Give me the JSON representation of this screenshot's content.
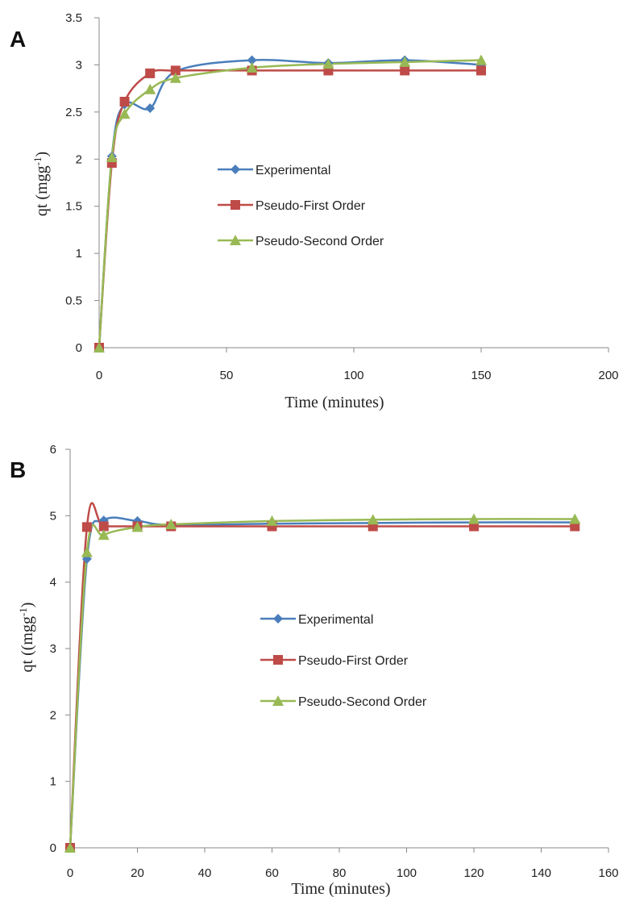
{
  "chart_data": [
    {
      "type": "line",
      "panel_label": "A",
      "xlabel": "Time (minutes)",
      "ylabel": "qt (mgg",
      "ylabel_sup": "-1",
      "ylabel_end": ")",
      "xlim": [
        0,
        200
      ],
      "ylim": [
        0,
        3.5
      ],
      "xticks": [
        "0",
        "50",
        "100",
        "150",
        "200"
      ],
      "yticks": [
        "0",
        "0.5",
        "1",
        "1.5",
        "2",
        "2.5",
        "3",
        "3.5"
      ],
      "grid": false,
      "legend_position": "center",
      "series": [
        {
          "name": "Experimental",
          "color": "#4a7ebb",
          "marker": "diamond",
          "x": [
            0,
            5,
            10,
            20,
            30,
            60,
            90,
            120,
            150
          ],
          "y": [
            0,
            2.03,
            2.58,
            2.54,
            2.93,
            3.05,
            3.02,
            3.05,
            3.0
          ]
        },
        {
          "name": "Pseudo-First Order",
          "color": "#be4b48",
          "marker": "square",
          "x": [
            0,
            5,
            10,
            20,
            30,
            60,
            90,
            120,
            150
          ],
          "y": [
            0,
            1.96,
            2.61,
            2.91,
            2.94,
            2.94,
            2.94,
            2.94,
            2.94
          ]
        },
        {
          "name": "Pseudo-Second Order",
          "color": "#98b954",
          "marker": "triangle",
          "x": [
            0,
            5,
            10,
            20,
            30,
            60,
            90,
            120,
            150
          ],
          "y": [
            0,
            2.02,
            2.48,
            2.74,
            2.86,
            2.97,
            3.01,
            3.03,
            3.05
          ]
        }
      ]
    },
    {
      "type": "line",
      "panel_label": "B",
      "xlabel": "Time (minutes)",
      "ylabel": "qt ((mgg",
      "ylabel_sup": "-1",
      "ylabel_end": ")",
      "xlim": [
        0,
        160
      ],
      "ylim": [
        0,
        6
      ],
      "xticks": [
        "0",
        "20",
        "40",
        "60",
        "80",
        "100",
        "120",
        "140",
        "160"
      ],
      "yticks": [
        "0",
        "1",
        "2",
        "3",
        "4",
        "5",
        "6"
      ],
      "grid": false,
      "legend_position": "center",
      "series": [
        {
          "name": "Experimental",
          "color": "#4a7ebb",
          "marker": "diamond",
          "x": [
            0,
            5,
            10,
            20,
            30,
            60,
            90,
            120,
            150
          ],
          "y": [
            0,
            4.35,
            4.93,
            4.92,
            4.86,
            4.88,
            4.89,
            4.9,
            4.9
          ]
        },
        {
          "name": "Pseudo-First Order",
          "color": "#be4b48",
          "marker": "square",
          "x": [
            0,
            5,
            10,
            20,
            30,
            60,
            90,
            120,
            150
          ],
          "y": [
            0,
            4.83,
            4.84,
            4.84,
            4.84,
            4.84,
            4.84,
            4.84,
            4.84
          ]
        },
        {
          "name": "Pseudo-Second Order",
          "color": "#98b954",
          "marker": "triangle",
          "x": [
            0,
            5,
            10,
            20,
            30,
            60,
            90,
            120,
            150
          ],
          "y": [
            0,
            4.45,
            4.71,
            4.83,
            4.87,
            4.92,
            4.94,
            4.95,
            4.95
          ]
        }
      ]
    }
  ]
}
